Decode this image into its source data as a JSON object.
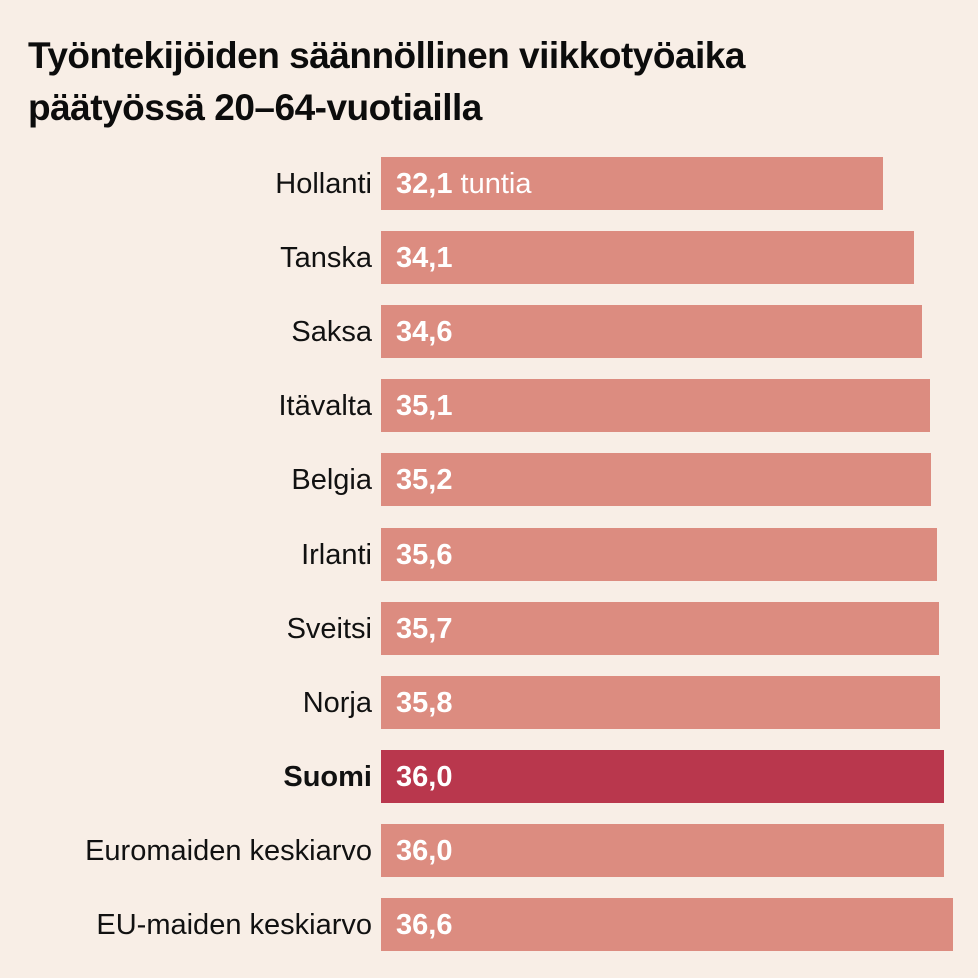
{
  "chart_data": {
    "type": "bar",
    "orientation": "horizontal",
    "title": "Työntekijöiden säännöllinen viikkotyöaika päätyössä 20–64-vuotiailla",
    "title_lines": [
      "Työntekijöiden säännöllinen viikkotyöaika",
      "päätyössä 20–64-vuotiailla"
    ],
    "unit": "tuntia",
    "categories": [
      "Hollanti",
      "Tanska",
      "Saksa",
      "Itävalta",
      "Belgia",
      "Irlanti",
      "Sveitsi",
      "Norja",
      "Suomi",
      "Euromaiden keskiarvo",
      "EU-maiden keskiarvo"
    ],
    "values": [
      32.1,
      34.1,
      34.6,
      35.1,
      35.2,
      35.6,
      35.7,
      35.8,
      36.0,
      36.0,
      36.6
    ],
    "value_labels": [
      "32,1",
      "34,1",
      "34,6",
      "35,1",
      "35,2",
      "35,6",
      "35,7",
      "35,8",
      "36,0",
      "36,0",
      "36,6"
    ],
    "highlight": "Suomi",
    "colors": {
      "default": "#dc8c80",
      "highlight": "#b9374d",
      "background": "#f8eee6"
    },
    "xlabel": "",
    "ylabel": "",
    "grid": false,
    "legend": "none"
  }
}
